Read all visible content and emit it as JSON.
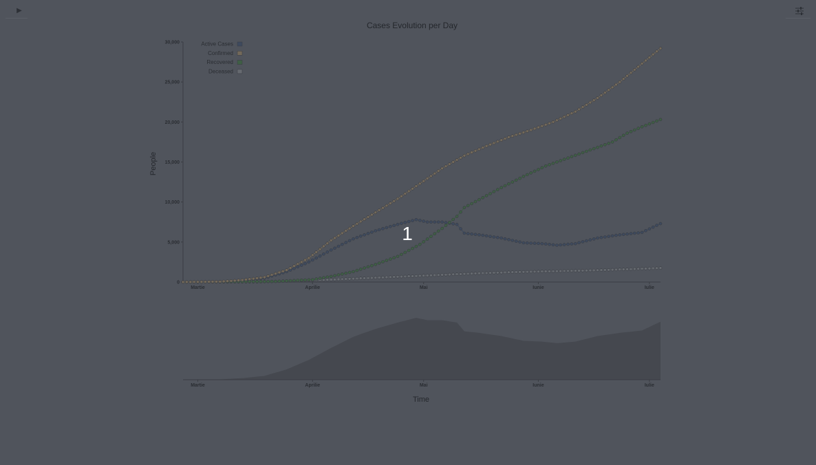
{
  "controls": {
    "play_icon_glyph": "▶",
    "play_icon": "play-icon",
    "settings_icon": "sliders-icon"
  },
  "overlay": {
    "label": "1"
  },
  "chart_data": {
    "type": "line",
    "title": "Cases Evolution per Day",
    "xlabel": "Time",
    "ylabel": "People",
    "ylim": [
      0,
      30000
    ],
    "yticks": [
      0,
      5000,
      10000,
      15000,
      20000,
      25000,
      30000
    ],
    "ytick_labels": [
      "0",
      "5,000",
      "10,000",
      "15,000",
      "20,000",
      "25,000",
      "30,000"
    ],
    "x_start_day": 0,
    "x_end_day": 129,
    "xticks": [
      {
        "day": 4,
        "label": "Martie"
      },
      {
        "day": 35,
        "label": "Aprilie"
      },
      {
        "day": 65,
        "label": "Mai"
      },
      {
        "day": 96,
        "label": "Iunie"
      },
      {
        "day": 126,
        "label": "Iulie"
      }
    ],
    "legend": [
      "Active Cases",
      "Confirmed",
      "Recovered",
      "Deceased"
    ],
    "colors": {
      "active": "#3e4a5e",
      "confirmed": "#73695a",
      "recovered": "#3f5f45",
      "deceased": "#666a70",
      "area": "#45484f",
      "axis": "#3a3d43",
      "marker_outline": "#3a3d43"
    },
    "series": [
      {
        "name": "Confirmed",
        "key": "confirmed",
        "days": [
          0,
          10,
          16,
          22,
          28,
          34,
          40,
          46,
          52,
          58,
          64,
          70,
          76,
          82,
          88,
          94,
          100,
          106,
          112,
          118,
          124,
          129
        ],
        "values": [
          0,
          50,
          250,
          600,
          1500,
          3000,
          5200,
          7000,
          8700,
          10400,
          12300,
          14200,
          15800,
          17000,
          18100,
          19000,
          20000,
          21300,
          23000,
          25000,
          27300,
          29200
        ]
      },
      {
        "name": "Active Cases",
        "key": "active",
        "days": [
          0,
          10,
          16,
          22,
          28,
          34,
          40,
          46,
          52,
          58,
          63,
          66,
          70,
          74,
          76,
          80,
          86,
          92,
          97,
          101,
          106,
          112,
          118,
          124,
          129
        ],
        "values": [
          0,
          40,
          200,
          480,
          1300,
          2500,
          4000,
          5400,
          6400,
          7200,
          7800,
          7500,
          7500,
          7200,
          6100,
          5900,
          5500,
          4900,
          4800,
          4600,
          4800,
          5500,
          5900,
          6200,
          7300
        ]
      },
      {
        "name": "Recovered",
        "key": "recovered",
        "days": [
          0,
          25,
          35,
          40,
          46,
          52,
          58,
          64,
          70,
          74,
          76,
          80,
          86,
          92,
          98,
          104,
          110,
          116,
          120,
          124,
          129
        ],
        "values": [
          0,
          80,
          300,
          700,
          1300,
          2200,
          3200,
          4700,
          6700,
          8200,
          9300,
          10300,
          11800,
          13200,
          14500,
          15500,
          16500,
          17500,
          18600,
          19400,
          20300
        ]
      },
      {
        "name": "Deceased",
        "key": "deceased",
        "days": [
          0,
          20,
          30,
          40,
          50,
          60,
          70,
          80,
          90,
          100,
          110,
          120,
          129
        ],
        "values": [
          0,
          20,
          150,
          300,
          500,
          700,
          900,
          1100,
          1250,
          1350,
          1450,
          1600,
          1750
        ]
      }
    ]
  }
}
